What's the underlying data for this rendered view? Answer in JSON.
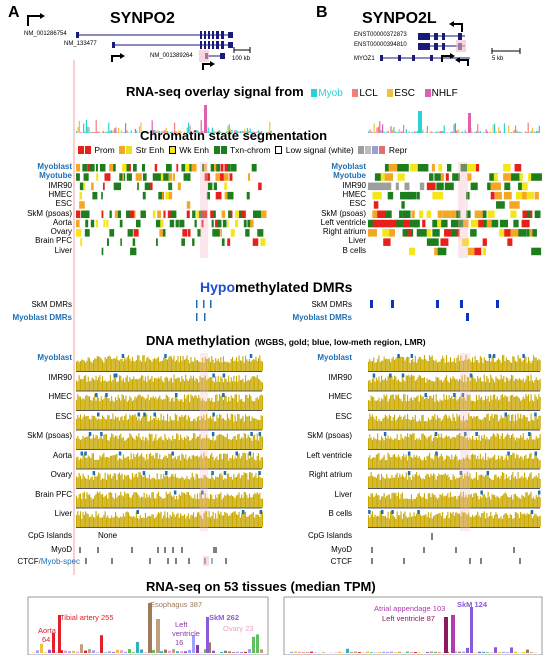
{
  "panels": {
    "a_letter": "A",
    "b_letter": "B",
    "a_gene": "SYNPO2",
    "b_gene": "SYNPO2L"
  },
  "isoforms": {
    "a": [
      "NM_001286754",
      "NM_133477",
      "NM_001389264"
    ],
    "b": [
      "ENST00000372873",
      "ENST00000394810",
      "MYOZ1"
    ]
  },
  "scale_bars": {
    "a": "100 kb",
    "b": "5 kb"
  },
  "rnaseq_overlay": {
    "title": "RNA-seq overlay signal from",
    "legend": [
      {
        "label": "Myob",
        "color": "#2ad3d3"
      },
      {
        "label": "LCL",
        "color": "#f08080"
      },
      {
        "label": "ESC",
        "color": "#f0c040"
      },
      {
        "label": "NHLF",
        "color": "#e060b0"
      }
    ]
  },
  "chromatin": {
    "title": "Chromatin state segmentation",
    "legend": [
      {
        "label": "Prom",
        "colors": [
          "#e8201c",
          "#e8201c"
        ]
      },
      {
        "label": "Str Enh",
        "colors": [
          "#f5a623",
          "#e8e020"
        ]
      },
      {
        "label": "Wk Enh",
        "colors": [
          "#f5e61a"
        ]
      },
      {
        "label": "Txn-chrom",
        "colors": [
          "#1e7e1e",
          "#1e7e1e"
        ]
      },
      {
        "label": "Low signal (white)",
        "colors": [
          "#ffffff"
        ]
      },
      {
        "label": "Repr",
        "colors": [
          "#9e9e9e",
          "#bdbdbd",
          "#9aa0d0",
          "#e07070"
        ]
      }
    ],
    "rows_a": [
      "Myoblast",
      "Myotube",
      "IMR90",
      "HMEC",
      "ESC",
      "SkM (psoas)",
      "Aorta",
      "Ovary",
      "Brain PFC",
      "Liver"
    ],
    "rows_b": [
      "Myoblast",
      "Myotube",
      "IMR90",
      "HMEC",
      "ESC",
      "SkM (psoas)",
      "Left ventricle",
      "Right atrium",
      "Liver",
      "B cells"
    ]
  },
  "dmrs": {
    "title_prefix": "Hypo",
    "title_suffix": "methylated DMRs",
    "rows": [
      "SkM DMRs",
      "Myoblast DMRs"
    ]
  },
  "methylation": {
    "title": "DNA methylation",
    "subtitle": "(WGBS, gold; blue, low-meth region, LMR)",
    "rows_a": [
      "Myoblast",
      "IMR90",
      "HMEC",
      "ESC",
      "SkM (psoas)",
      "Aorta",
      "Ovary",
      "Brain PFC",
      "Liver"
    ],
    "rows_b": [
      "Myoblast",
      "IMR90",
      "HMEC",
      "ESC",
      "SkM (psoas)",
      "Left ventricle",
      "Right atrium",
      "Liver",
      "B cells"
    ]
  },
  "bottom_tracks": {
    "cpg": "CpG Islands",
    "none": "None",
    "myod": "MyoD",
    "ctcf": "CTCF",
    "myob_spec": "/Myob-spec"
  },
  "rnaseq_tissues": {
    "title": "RNA-seq on 53 tissues (median TPM)",
    "a_labels": [
      {
        "text": "Tibial artery 255",
        "color": "#e0202a"
      },
      {
        "text": "Esophagus 387",
        "color": "#9c7a5a"
      },
      {
        "text": "SkM 262",
        "color": "#8a5ad8"
      },
      {
        "text": "Aorta",
        "color": "#e0202a"
      },
      {
        "text": "64",
        "color": "#e0202a"
      },
      {
        "text": "Left",
        "color": "#8a3aa8"
      },
      {
        "text": "ventricle",
        "color": "#8a3aa8"
      },
      {
        "text": "16",
        "color": "#8a3aa8"
      },
      {
        "text": "Ovary 23",
        "color": "#f0a0c8"
      }
    ],
    "b_labels": [
      {
        "text": "Atrial appendage 103",
        "color": "#b03ab0"
      },
      {
        "text": "SkM 124",
        "color": "#8a5ad8"
      },
      {
        "text": "Left ventricle 87",
        "color": "#8a1a60"
      }
    ]
  },
  "colors": {
    "gold": "#c9a800",
    "lmr_blue": "#1f6fb5",
    "highlight_pink": "#f3b8c8",
    "title_blue": "#1f4fd0"
  }
}
